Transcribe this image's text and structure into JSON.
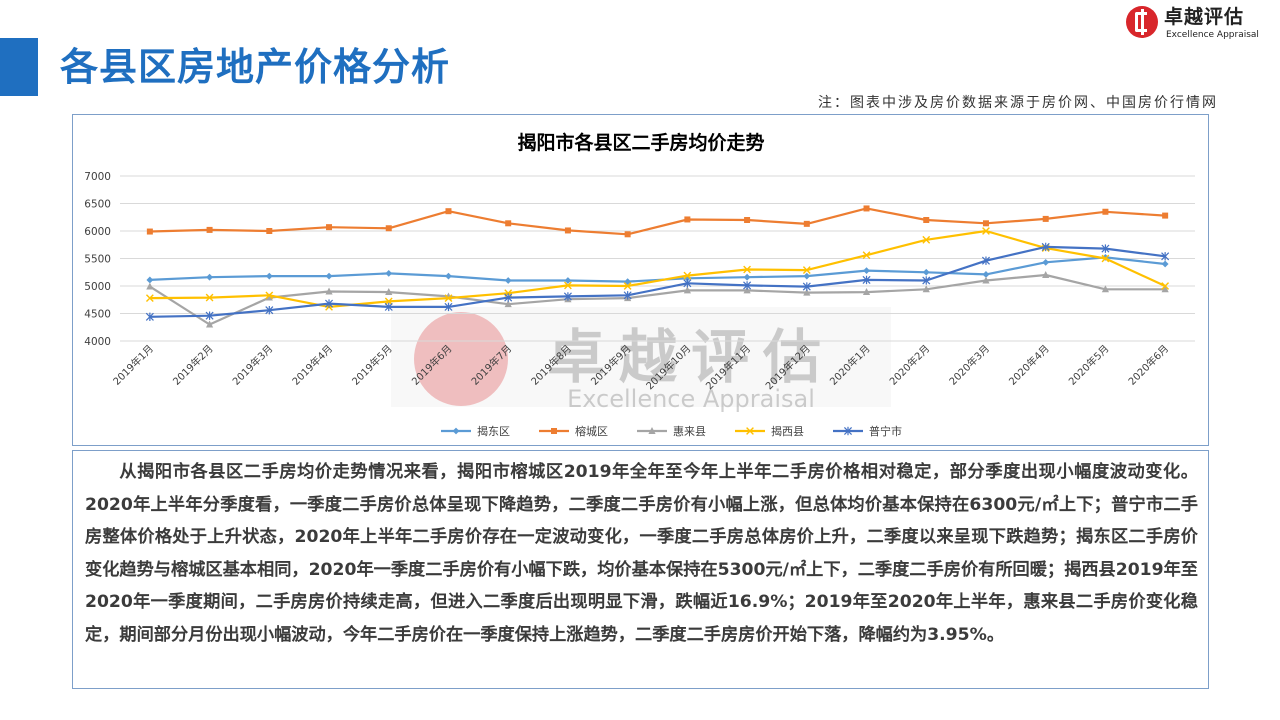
{
  "header": {
    "title": "各县区房地产价格分析",
    "source_note": "注：图表中涉及房价数据来源于房价网、中国房价行情网"
  },
  "brand": {
    "name": "卓越评估",
    "name_en": "Excellence Appraisal",
    "color": "#d8262b"
  },
  "chart_data": {
    "type": "line",
    "title": "揭阳市各县区二手房均价走势",
    "categories": [
      "2019年1月",
      "2019年2月",
      "2019年3月",
      "2019年4月",
      "2019年5月",
      "2019年6月",
      "2019年7月",
      "2019年8月",
      "2019年9月",
      "2019年10月",
      "2019年11月",
      "2019年12月",
      "2020年1月",
      "2020年2月",
      "2020年3月",
      "2020年4月",
      "2020年5月",
      "2020年6月"
    ],
    "ylim": [
      4000,
      7000
    ],
    "yticks": [
      4000,
      4500,
      5000,
      5500,
      6000,
      6500,
      7000
    ],
    "grid": true,
    "legend_position": "bottom",
    "series": [
      {
        "name": "揭东区",
        "color": "#5b9bd5",
        "marker": "diamond",
        "values": [
          5110,
          5160,
          5180,
          5180,
          5230,
          5180,
          5100,
          5100,
          5080,
          5140,
          5160,
          5180,
          5280,
          5250,
          5210,
          5430,
          5520,
          5400
        ]
      },
      {
        "name": "榕城区",
        "color": "#ed7d31",
        "marker": "square",
        "values": [
          5990,
          6020,
          6000,
          6070,
          6050,
          6360,
          6140,
          6010,
          5940,
          6210,
          6200,
          6130,
          6410,
          6200,
          6140,
          6220,
          6350,
          6280
        ]
      },
      {
        "name": "惠来县",
        "color": "#a5a5a5",
        "marker": "triangle",
        "values": [
          4990,
          4300,
          4790,
          4900,
          4890,
          4810,
          4670,
          4760,
          4780,
          4920,
          4920,
          4880,
          4890,
          4940,
          5100,
          5200,
          4940,
          4940
        ]
      },
      {
        "name": "揭西县",
        "color": "#ffc000",
        "marker": "x",
        "values": [
          4780,
          4790,
          4830,
          4620,
          4720,
          4780,
          4870,
          5010,
          5000,
          5190,
          5300,
          5290,
          5560,
          5840,
          6000,
          5690,
          5500,
          5000
        ]
      },
      {
        "name": "普宁市",
        "color": "#4472c4",
        "marker": "star",
        "values": [
          4440,
          4460,
          4560,
          4680,
          4620,
          4620,
          4790,
          4810,
          4830,
          5050,
          5010,
          4990,
          5110,
          5100,
          5460,
          5710,
          5680,
          5540
        ]
      }
    ]
  },
  "analysis": {
    "paragraph": "从揭阳市各县区二手房均价走势情况来看，揭阳市榕城区2019年全年至今年上半年二手房价格相对稳定，部分季度出现小幅度波动变化。2020年上半年分季度看，一季度二手房价总体呈现下降趋势，二季度二手房价有小幅上涨，但总体均价基本保持在6300元/㎡上下；普宁市二手房整体价格处于上升状态，2020年上半年二手房价存在一定波动变化，一季度二手房总体房价上升，二季度以来呈现下跌趋势；揭东区二手房价变化趋势与榕城区基本相同，2020年一季度二手房价有小幅下跌，均价基本保持在5300元/㎡上下，二季度二手房价有所回暖；揭西县2019年至2020年一季度期间，二手房房价持续走高，但进入二季度后出现明显下滑，跌幅近16.9%；2019年至2020年上半年，惠来县二手房价变化稳定，期间部分月份出现小幅波动，今年二手房价在一季度保持上涨趋势，二季度二手房房价开始下落，降幅约为3.95%。"
  }
}
